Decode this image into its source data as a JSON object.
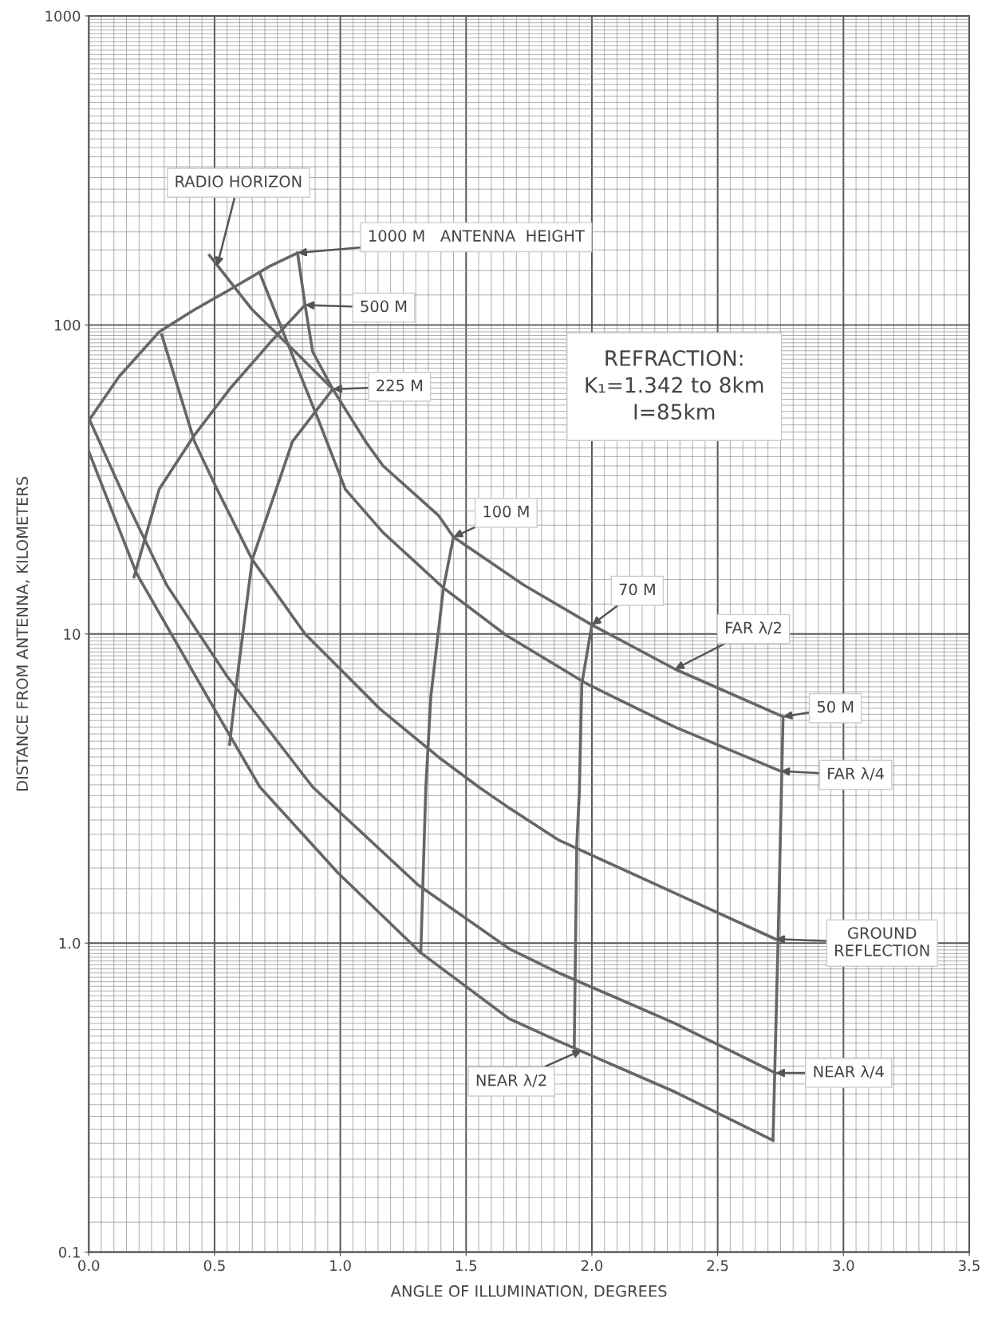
{
  "chart_data": {
    "type": "line",
    "xlabel": "ANGLE OF ILLUMINATION, DEGREES",
    "ylabel": "DISTANCE FROM ANTENNA, KILOMETERS",
    "log": "y",
    "grid": true,
    "xlim": [
      0,
      3.5
    ],
    "ylim": [
      0.1,
      1000
    ],
    "xticks": [
      {
        "value": 0,
        "label": "0.0"
      },
      0.5,
      {
        "value": 1,
        "label": "1.0"
      },
      1.5,
      {
        "value": 2,
        "label": "2.0"
      },
      2.5,
      {
        "value": 3,
        "label": "3.0"
      },
      3.5
    ],
    "yticks": [
      {
        "value": 0.1,
        "label": "0.1"
      },
      {
        "value": 1,
        "label": "1.0"
      },
      10,
      100,
      1000
    ],
    "series": [
      {
        "color": "#666666",
        "x": [
          0,
          0.12,
          0.28,
          0.42,
          0.56,
          0.72,
          0.83
        ],
        "values": [
          49,
          68,
          95,
          112,
          130,
          155,
          171
        ]
      },
      {
        "color": "#666666",
        "x": [
          0.83,
          0.86,
          0.89,
          0.97,
          1.1,
          1.17,
          1.39,
          1.45,
          1.73,
          2.0,
          2.33,
          2.76
        ],
        "values": [
          171,
          116,
          82,
          62,
          42,
          35,
          24.2,
          20.6,
          14.4,
          10.7,
          7.7,
          5.4
        ]
      },
      {
        "color": "#666666",
        "x": [
          0.48,
          0.65,
          0.82,
          0.97
        ],
        "values": [
          168,
          112,
          82,
          62
        ]
      },
      {
        "color": "#666666",
        "x": [
          0.68,
          0.79,
          0.91,
          1.02,
          1.17,
          1.41,
          1.66,
          1.98,
          2.33,
          2.75
        ],
        "values": [
          147,
          87.5,
          50,
          29.4,
          21.3,
          14.1,
          9.9,
          6.9,
          5.0,
          3.6
        ]
      },
      {
        "color": "#666666",
        "x": [
          0.29,
          0.42,
          0.51,
          0.65,
          0.86,
          1.16,
          1.39,
          1.55,
          1.67,
          1.87,
          2.33,
          2.73
        ],
        "values": [
          93,
          42,
          29.4,
          17.4,
          10.0,
          5.7,
          4.0,
          3.2,
          2.74,
          2.15,
          1.45,
          1.03
        ]
      },
      {
        "color": "#666666",
        "x": [
          0,
          0.15,
          0.31,
          0.55,
          0.89,
          1.31,
          1.67,
          1.87,
          2.33,
          2.73
        ],
        "values": [
          50,
          26.8,
          14.4,
          7.3,
          3.2,
          1.54,
          0.96,
          0.8,
          0.55,
          0.38
        ]
      },
      {
        "color": "#666666",
        "x": [
          0,
          0.19,
          0.49,
          0.68,
          0.99,
          1.32,
          1.67,
          1.87,
          2.33,
          2.72
        ],
        "values": [
          39,
          15.7,
          5.9,
          3.2,
          1.69,
          0.93,
          0.57,
          0.48,
          0.33,
          0.23
        ]
      },
      {
        "color": "#666666",
        "x": [
          0.18,
          0.28,
          0.42,
          0.56,
          0.72,
          0.86
        ],
        "values": [
          15.3,
          29.4,
          44,
          62,
          87.5,
          116
        ]
      },
      {
        "color": "#666666",
        "x": [
          0.56,
          0.59,
          0.65,
          0.81,
          0.97
        ],
        "values": [
          4.4,
          7.2,
          17.4,
          42,
          62
        ]
      },
      {
        "color": "#666666",
        "x": [
          1.32,
          1.33,
          1.34,
          1.36,
          1.41,
          1.45
        ],
        "values": [
          0.93,
          1.74,
          3.2,
          6.3,
          14.1,
          20.6
        ]
      },
      {
        "color": "#666666",
        "x": [
          1.93,
          1.94,
          1.95,
          1.96,
          2.0
        ],
        "values": [
          0.46,
          2.1,
          3.05,
          6.9,
          10.7
        ]
      },
      {
        "color": "#666666",
        "x": [
          2.72,
          2.74,
          2.76
        ],
        "values": [
          0.23,
          1.01,
          5.4
        ]
      }
    ],
    "annotations": [
      {
        "text": "RADIO HORIZON",
        "x": 0.51,
        "y": 155
      },
      {
        "text": "1000 M   ANTENNA  HEIGHT",
        "x": 0.83,
        "y": 171
      },
      {
        "text": "500 M",
        "x": 0.86,
        "y": 116
      },
      {
        "text": "225 M",
        "x": 0.97,
        "y": 62
      },
      {
        "text": "100 M",
        "x": 1.45,
        "y": 20.6
      },
      {
        "text": "70 M",
        "x": 2.0,
        "y": 10.7
      },
      {
        "text": "FAR λ/2",
        "x": 2.33,
        "y": 7.7
      },
      {
        "text": "50 M",
        "x": 2.76,
        "y": 5.4
      },
      {
        "text": "FAR λ/4",
        "x": 2.75,
        "y": 3.6
      },
      {
        "text": "GROUND\nREFLECTION",
        "x": 2.73,
        "y": 1.03
      },
      {
        "text": "NEAR λ/4",
        "x": 2.73,
        "y": 0.38
      },
      {
        "text": "NEAR λ/2",
        "x": 1.96,
        "y": 0.45
      },
      "REFRACTION:\nK₁=1.342 to 8km\nI=85km"
    ]
  }
}
